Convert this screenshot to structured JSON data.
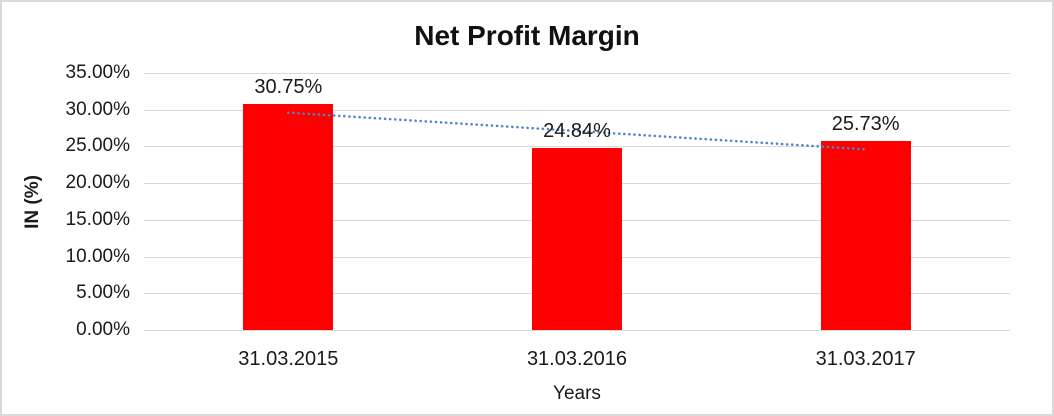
{
  "chart_data": {
    "type": "bar",
    "title": "Net Profit Margin",
    "xlabel": "Years",
    "ylabel": "IN (%)",
    "categories": [
      "31.03.2015",
      "31.03.2016",
      "31.03.2017"
    ],
    "values": [
      30.75,
      24.84,
      25.73
    ],
    "value_labels": [
      "30.75%",
      "24.84%",
      "25.73%"
    ],
    "ylim": [
      0,
      35
    ],
    "y_tick_step": 5,
    "y_tick_labels": [
      "0.00%",
      "5.00%",
      "10.00%",
      "15.00%",
      "20.00%",
      "25.00%",
      "30.00%",
      "35.00%"
    ],
    "grid": true,
    "legend": "none",
    "bar_color": "#ff0000",
    "gridline_color": "#d9d9d9",
    "text_color": "#1a1a1a",
    "trendline": {
      "type": "linear",
      "style": "dotted",
      "color": "#4a86c8",
      "start_value": 29.6,
      "end_value": 24.6
    }
  }
}
